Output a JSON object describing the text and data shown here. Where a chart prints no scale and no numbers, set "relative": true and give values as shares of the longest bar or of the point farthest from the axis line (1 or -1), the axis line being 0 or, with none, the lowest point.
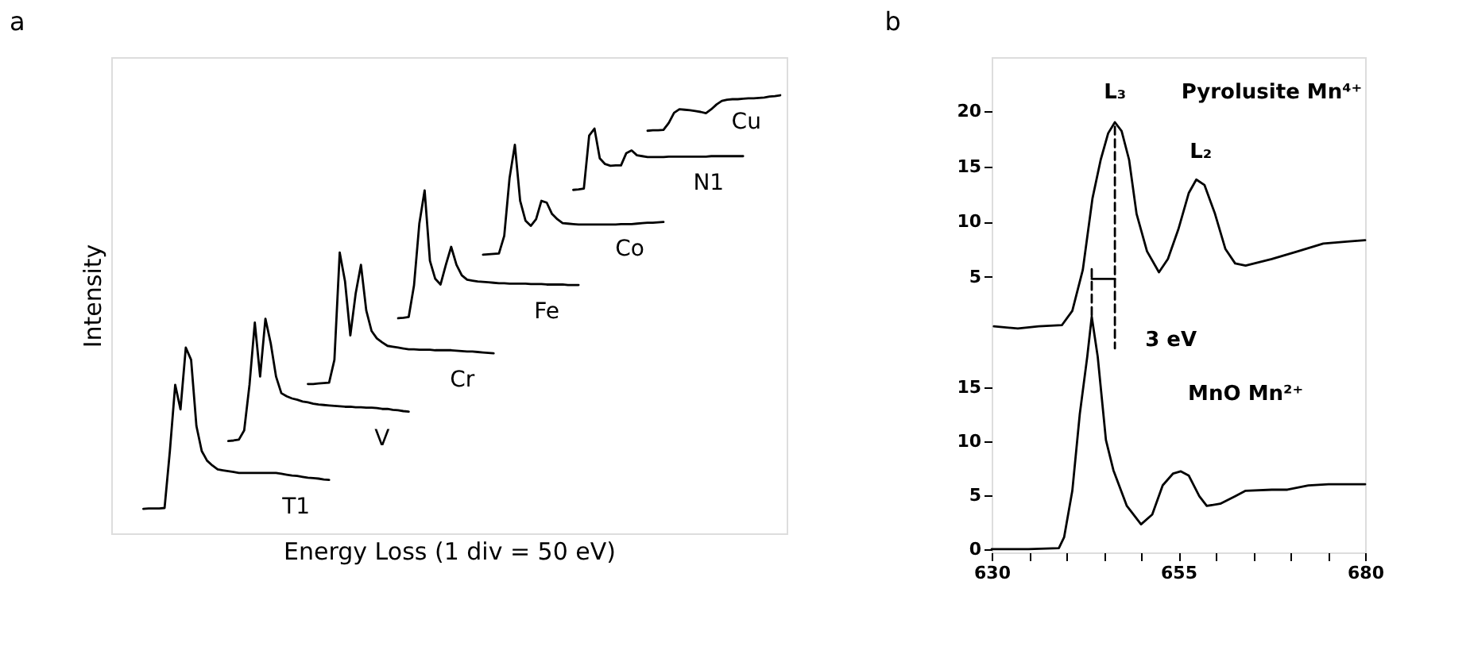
{
  "chart_data": [
    {
      "type": "line",
      "title": "a",
      "xlabel": "Energy Loss (1 div = 50 eV)",
      "ylabel": "Intensity",
      "relative": true,
      "grid": false,
      "marker": "none",
      "line_style": "solid",
      "categories": [
        null,
        null,
        null,
        null,
        null,
        null,
        null,
        null,
        null,
        null,
        null,
        null,
        null,
        null,
        null,
        null,
        null,
        null,
        null,
        null,
        null,
        null,
        null,
        null,
        null,
        null,
        null,
        null,
        null,
        null,
        null,
        null,
        null,
        null,
        null,
        null,
        null,
        null,
        null,
        null,
        null,
        null,
        null,
        null,
        null,
        null,
        null,
        null,
        null,
        null,
        null,
        null,
        null,
        null,
        null,
        null,
        null,
        null,
        null,
        null,
        null,
        null,
        null,
        null,
        null,
        null,
        null,
        null,
        null,
        null,
        null,
        null,
        null,
        null,
        null,
        null,
        null,
        null,
        null,
        null,
        null,
        null,
        null,
        null,
        null,
        null,
        null,
        null,
        null,
        null,
        null,
        null,
        null,
        null,
        null,
        null,
        null,
        null,
        null,
        null,
        null,
        null,
        null,
        null,
        null,
        null,
        null,
        null,
        null,
        null,
        null,
        null,
        null,
        null,
        null,
        null,
        null,
        null,
        null,
        null,
        null
      ],
      "series": [
        {
          "name": "T1",
          "color": "#000000",
          "values": [
            0.056,
            0.057,
            0.057,
            0.057,
            0.058,
            0.188,
            0.339,
            0.283,
            0.424,
            0.396,
            0.245,
            0.188,
            0.166,
            0.155,
            0.146,
            0.144,
            0.142,
            0.14,
            0.138,
            0.138,
            0.138,
            0.138,
            0.138,
            0.138,
            0.138,
            0.138,
            0.136,
            0.134,
            0.132,
            0.131,
            0.129,
            0.127,
            0.126,
            0.125,
            0.123,
            0.122,
            null,
            null,
            null,
            null,
            null,
            null,
            null,
            null,
            null,
            null,
            null,
            null,
            null,
            null,
            null,
            null,
            null,
            null,
            null,
            null,
            null,
            null,
            null,
            null,
            null,
            null,
            null,
            null,
            null,
            null,
            null,
            null,
            null,
            null,
            null,
            null,
            null,
            null,
            null,
            null,
            null,
            null,
            null,
            null,
            null,
            null,
            null,
            null,
            null,
            null,
            null,
            null,
            null,
            null,
            null,
            null,
            null,
            null,
            null,
            null,
            null,
            null,
            null,
            null,
            null,
            null,
            null,
            null,
            null,
            null,
            null,
            null,
            null,
            null,
            null,
            null,
            null,
            null,
            null,
            null,
            null,
            null,
            null,
            null,
            null
          ]
        },
        {
          "name": "V",
          "color": "#000000",
          "values": [
            null,
            null,
            null,
            null,
            null,
            null,
            null,
            null,
            null,
            null,
            null,
            null,
            null,
            null,
            null,
            null,
            0.211,
            0.212,
            0.214,
            0.235,
            0.339,
            0.481,
            0.358,
            0.49,
            0.434,
            0.358,
            0.32,
            0.313,
            0.308,
            0.305,
            0.301,
            0.299,
            0.296,
            0.294,
            0.293,
            0.292,
            0.291,
            0.29,
            0.289,
            0.289,
            0.288,
            0.288,
            0.287,
            0.287,
            0.286,
            0.284,
            0.284,
            0.282,
            0.281,
            0.279,
            0.278,
            null,
            null,
            null,
            null,
            null,
            null,
            null,
            null,
            null,
            null,
            null,
            null,
            null,
            null,
            null,
            null,
            null,
            null,
            null,
            null,
            null,
            null,
            null,
            null,
            null,
            null,
            null,
            null,
            null,
            null,
            null,
            null,
            null,
            null,
            null,
            null,
            null,
            null,
            null,
            null,
            null,
            null,
            null,
            null,
            null,
            null,
            null,
            null,
            null,
            null,
            null,
            null,
            null,
            null,
            null,
            null,
            null,
            null,
            null,
            null,
            null,
            null,
            null,
            null,
            null,
            null,
            null,
            null,
            null,
            null
          ]
        },
        {
          "name": "Cr",
          "color": "#000000",
          "values": [
            null,
            null,
            null,
            null,
            null,
            null,
            null,
            null,
            null,
            null,
            null,
            null,
            null,
            null,
            null,
            null,
            null,
            null,
            null,
            null,
            null,
            null,
            null,
            null,
            null,
            null,
            null,
            null,
            null,
            null,
            null,
            0.341,
            0.341,
            0.342,
            0.343,
            0.344,
            0.396,
            0.641,
            0.575,
            0.452,
            0.547,
            0.613,
            0.509,
            0.462,
            0.445,
            0.436,
            0.428,
            0.426,
            0.424,
            0.422,
            0.42,
            0.42,
            0.419,
            0.419,
            0.419,
            0.418,
            0.418,
            0.418,
            0.418,
            0.417,
            0.416,
            0.415,
            0.415,
            0.414,
            0.413,
            0.412,
            0.411,
            null,
            null,
            null,
            null,
            null,
            null,
            null,
            null,
            null,
            null,
            null,
            null,
            null,
            null,
            null,
            null,
            null,
            null,
            null,
            null,
            null,
            null,
            null,
            null,
            null,
            null,
            null,
            null,
            null,
            null,
            null,
            null,
            null,
            null,
            null,
            null,
            null,
            null,
            null,
            null,
            null,
            null,
            null,
            null,
            null,
            null,
            null,
            null,
            null,
            null,
            null,
            null,
            null,
            null
          ]
        },
        {
          "name": "Fe",
          "color": "#000000",
          "values": [
            null,
            null,
            null,
            null,
            null,
            null,
            null,
            null,
            null,
            null,
            null,
            null,
            null,
            null,
            null,
            null,
            null,
            null,
            null,
            null,
            null,
            null,
            null,
            null,
            null,
            null,
            null,
            null,
            null,
            null,
            null,
            null,
            null,
            null,
            null,
            null,
            null,
            null,
            null,
            null,
            null,
            null,
            null,
            null,
            null,
            null,
            null,
            null,
            0.491,
            0.492,
            0.494,
            0.566,
            0.707,
            0.783,
            0.622,
            0.581,
            0.568,
            0.613,
            0.654,
            0.613,
            0.589,
            0.579,
            0.577,
            0.575,
            0.574,
            0.573,
            0.572,
            0.571,
            0.571,
            0.57,
            0.57,
            0.57,
            0.57,
            0.569,
            0.569,
            0.569,
            0.568,
            0.568,
            0.568,
            0.568,
            0.567,
            0.567,
            0.567,
            null,
            null,
            null,
            null,
            null,
            null,
            null,
            null,
            null,
            null,
            null,
            null,
            null,
            null,
            null,
            null,
            null,
            null,
            null,
            null,
            null,
            null,
            null,
            null,
            null,
            null,
            null,
            null,
            null,
            null,
            null,
            null,
            null,
            null,
            null,
            null,
            null,
            null
          ]
        },
        {
          "name": "Co",
          "color": "#000000",
          "values": [
            null,
            null,
            null,
            null,
            null,
            null,
            null,
            null,
            null,
            null,
            null,
            null,
            null,
            null,
            null,
            null,
            null,
            null,
            null,
            null,
            null,
            null,
            null,
            null,
            null,
            null,
            null,
            null,
            null,
            null,
            null,
            null,
            null,
            null,
            null,
            null,
            null,
            null,
            null,
            null,
            null,
            null,
            null,
            null,
            null,
            null,
            null,
            null,
            null,
            null,
            null,
            null,
            null,
            null,
            null,
            null,
            null,
            null,
            null,
            null,
            null,
            null,
            null,
            null,
            0.636,
            0.637,
            0.638,
            0.639,
            0.679,
            0.811,
            0.887,
            0.759,
            0.714,
            0.702,
            0.717,
            0.759,
            0.755,
            0.729,
            0.717,
            0.708,
            0.707,
            0.706,
            0.705,
            0.705,
            0.705,
            0.705,
            0.705,
            0.705,
            0.705,
            0.705,
            0.706,
            0.706,
            0.706,
            0.707,
            0.708,
            0.709,
            0.709,
            0.71,
            0.711,
            null,
            null,
            null,
            null,
            null,
            null,
            null,
            null,
            null,
            null,
            null,
            null,
            null,
            null,
            null,
            null,
            null,
            null,
            null,
            null,
            null,
            null
          ]
        },
        {
          "name": "N1",
          "color": "#000000",
          "values": [
            null,
            null,
            null,
            null,
            null,
            null,
            null,
            null,
            null,
            null,
            null,
            null,
            null,
            null,
            null,
            null,
            null,
            null,
            null,
            null,
            null,
            null,
            null,
            null,
            null,
            null,
            null,
            null,
            null,
            null,
            null,
            null,
            null,
            null,
            null,
            null,
            null,
            null,
            null,
            null,
            null,
            null,
            null,
            null,
            null,
            null,
            null,
            null,
            null,
            null,
            null,
            null,
            null,
            null,
            null,
            null,
            null,
            null,
            null,
            null,
            null,
            null,
            null,
            null,
            null,
            null,
            null,
            null,
            null,
            null,
            null,
            null,
            null,
            null,
            null,
            null,
            null,
            null,
            null,
            null,
            null,
            0.784,
            0.785,
            0.787,
            0.908,
            0.924,
            0.856,
            0.843,
            0.839,
            0.84,
            0.84,
            0.868,
            0.874,
            0.863,
            0.861,
            0.859,
            0.859,
            0.859,
            0.859,
            0.86,
            0.86,
            0.86,
            0.86,
            0.86,
            0.86,
            0.86,
            0.86,
            0.861,
            0.861,
            0.861,
            0.861,
            0.861,
            0.861,
            0.861,
            null,
            null,
            null,
            null,
            null,
            null,
            null
          ]
        },
        {
          "name": "Cu",
          "color": "#000000",
          "values": [
            null,
            null,
            null,
            null,
            null,
            null,
            null,
            null,
            null,
            null,
            null,
            null,
            null,
            null,
            null,
            null,
            null,
            null,
            null,
            null,
            null,
            null,
            null,
            null,
            null,
            null,
            null,
            null,
            null,
            null,
            null,
            null,
            null,
            null,
            null,
            null,
            null,
            null,
            null,
            null,
            null,
            null,
            null,
            null,
            null,
            null,
            null,
            null,
            null,
            null,
            null,
            null,
            null,
            null,
            null,
            null,
            null,
            null,
            null,
            null,
            null,
            null,
            null,
            null,
            null,
            null,
            null,
            null,
            null,
            null,
            null,
            null,
            null,
            null,
            null,
            null,
            null,
            null,
            null,
            null,
            null,
            null,
            null,
            null,
            null,
            null,
            null,
            null,
            null,
            null,
            null,
            null,
            null,
            null,
            null,
            0.919,
            0.92,
            0.92,
            0.921,
            0.937,
            0.96,
            0.968,
            0.967,
            0.966,
            0.964,
            0.962,
            0.959,
            0.968,
            0.979,
            0.987,
            0.99,
            0.991,
            0.991,
            0.992,
            0.993,
            0.993,
            0.994,
            0.995,
            0.997,
            0.998,
            1.0
          ]
        }
      ]
    },
    {
      "type": "line",
      "title": "b",
      "grid": false,
      "marker": "none",
      "line_style": "solid",
      "xlim": [
        630,
        680
      ],
      "xticks": [
        630,
        {
          "value": 635,
          "label": null
        },
        {
          "value": 640,
          "label": null
        },
        {
          "value": 645,
          "label": null
        },
        {
          "value": 650,
          "label": null
        },
        655,
        {
          "value": 660,
          "label": null
        },
        {
          "value": 665,
          "label": null
        },
        {
          "value": 670,
          "label": null
        },
        {
          "value": 675,
          "label": null
        },
        680
      ],
      "ylim": [
        -0.3,
        45.5
      ],
      "yticks": [
        0,
        5,
        10,
        15
      ],
      "y2lim": [
        -20,
        24.9
      ],
      "y2ticks": [
        5,
        10,
        15,
        20
      ],
      "series": [
        {
          "color": "#000000",
          "x": [
            630,
            634.9,
            639.0,
            639.7,
            640.8,
            641.8,
            642.8,
            643.4,
            644.2,
            645.3,
            646.3,
            648.1,
            650.0,
            651.5,
            652.9,
            654.3,
            655.3,
            656.4,
            657.8,
            658.8,
            660.6,
            662.6,
            664.0,
            667.5,
            669.6,
            672.4,
            675.1,
            677.9,
            680.0
          ],
          "values": [
            0,
            0,
            0.1,
            1.1,
            5.4,
            12.5,
            17.8,
            21.5,
            17.8,
            10.1,
            7.3,
            4.0,
            2.3,
            3.2,
            5.9,
            7.0,
            7.2,
            6.8,
            4.9,
            4.0,
            4.2,
            4.9,
            5.4,
            5.5,
            5.5,
            5.9,
            6.0,
            6.0,
            6.0
          ]
        },
        {
          "color": "#000000",
          "axis": "y2",
          "x": [
            630.3,
            633.5,
            636.3,
            639.4,
            640.8,
            642.2,
            643.5,
            644.6,
            645.6,
            646.5,
            647.4,
            648.4,
            649.4,
            650.8,
            652.4,
            653.6,
            655.0,
            656.4,
            657.4,
            658.5,
            659.9,
            661.3,
            662.6,
            664.0,
            667.5,
            671.0,
            674.4,
            677.9,
            680
          ],
          "values": [
            0.5,
            0.3,
            0.5,
            0.6,
            1.9,
            5.6,
            12.1,
            15.6,
            18.0,
            19.0,
            18.2,
            15.6,
            10.7,
            7.3,
            5.4,
            6.6,
            9.3,
            12.6,
            13.8,
            13.3,
            10.7,
            7.5,
            6.2,
            6.0,
            6.6,
            7.3,
            8.0,
            8.2,
            8.3
          ]
        },
        {
          "color": "#000000",
          "axis": "y2",
          "line_style": "dashed",
          "x": [
            646.5,
            646.5
          ],
          "values": [
            18.6,
            -1.5
          ]
        },
        {
          "color": "#000000",
          "axis": "y2",
          "line_style": "dashed",
          "x": [
            643.4,
            643.4
          ],
          "values": [
            1.5,
            6.1
          ]
        },
        {
          "color": "#000000",
          "axis": "y2",
          "x": [
            643.4,
            646.5
          ],
          "values": [
            4.8,
            4.8
          ]
        }
      ],
      "annotations": [
        "L₃",
        "Pyrolusite Mn⁴⁺",
        "L₂",
        "3 eV",
        "MnO Mn²⁺"
      ]
    }
  ]
}
